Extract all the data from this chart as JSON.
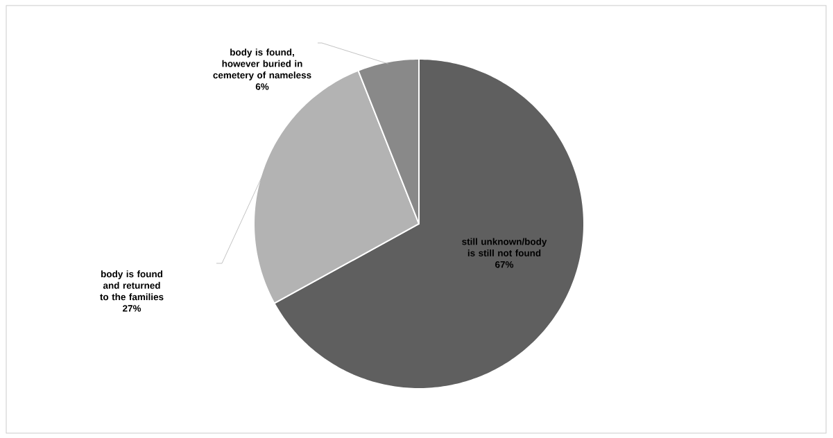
{
  "chart_data": {
    "type": "pie",
    "categories": [
      "still unknown/body is still not found",
      "body is found and returned to the families",
      "body is found, however buried in cemetery of nameless"
    ],
    "values": [
      67,
      27,
      6
    ],
    "colors": [
      "#5f5f5f",
      "#b3b3b3",
      "#898989"
    ],
    "value_labels": [
      "67%",
      "27%",
      "6%"
    ]
  }
}
